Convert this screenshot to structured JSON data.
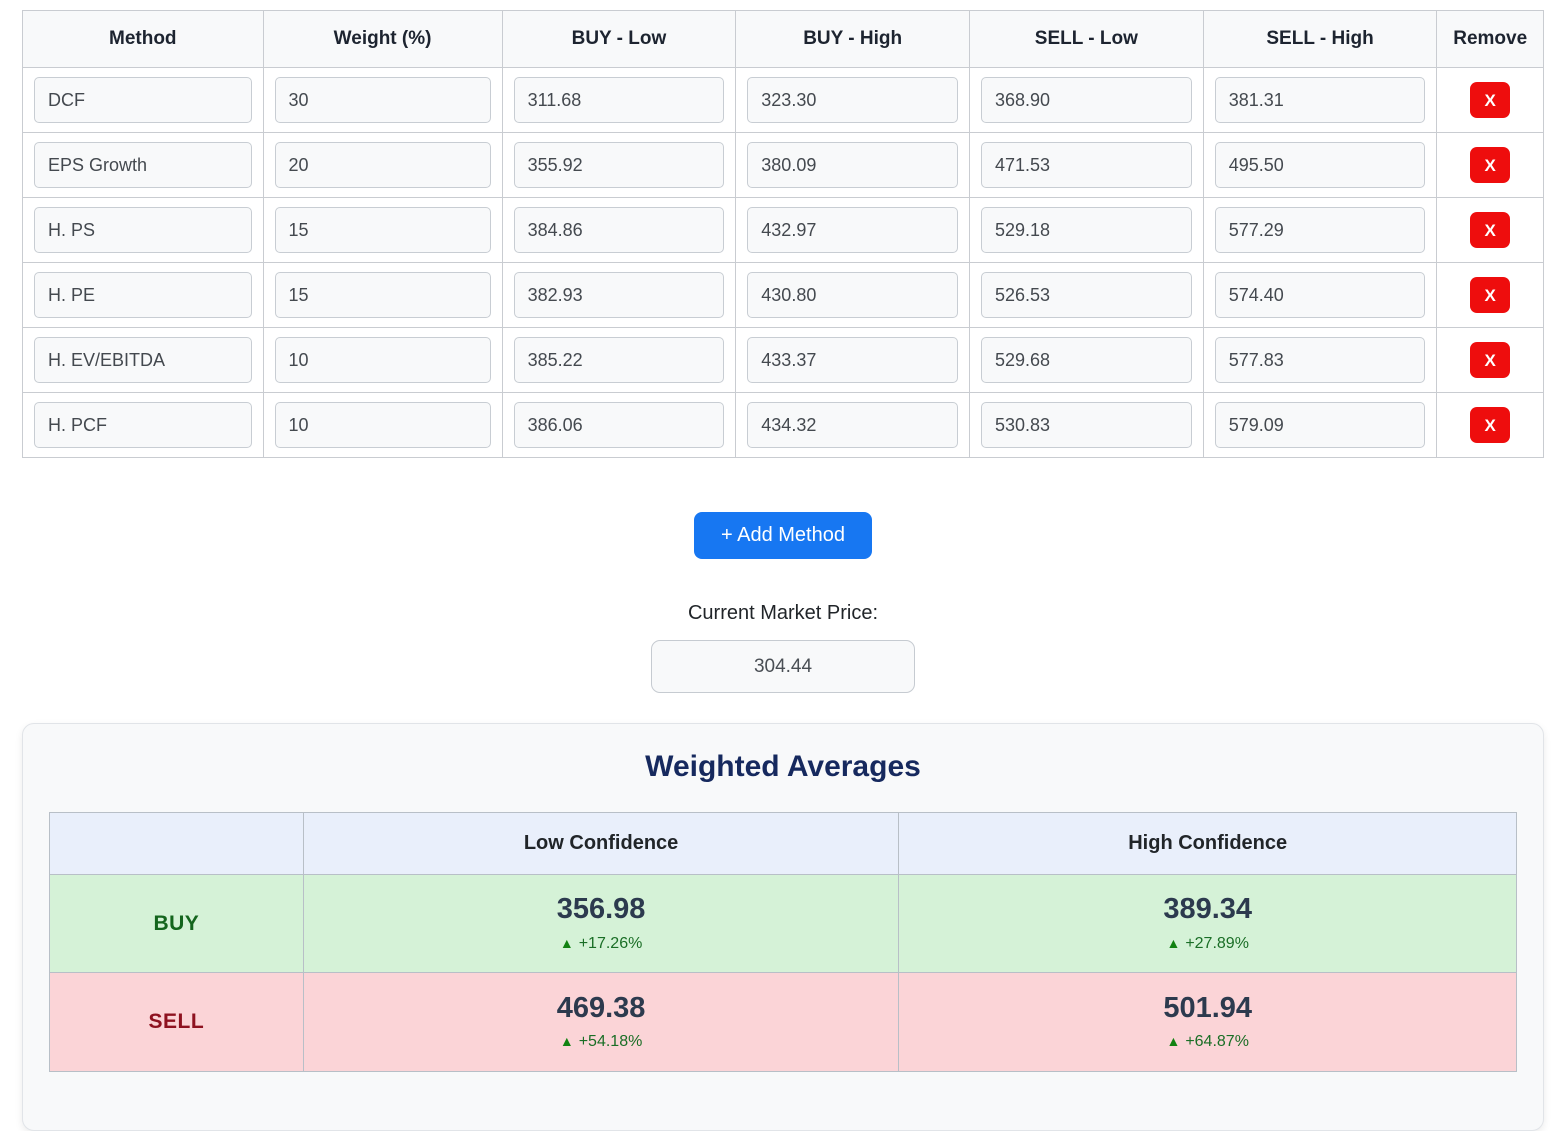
{
  "methods_table": {
    "headers": [
      "Method",
      "Weight (%)",
      "BUY - Low",
      "BUY - High",
      "SELL - Low",
      "SELL - High",
      "Remove"
    ],
    "remove_label": "X",
    "rows": [
      {
        "method": "DCF",
        "weight": "30",
        "buy_low": "311.68",
        "buy_high": "323.30",
        "sell_low": "368.90",
        "sell_high": "381.31"
      },
      {
        "method": "EPS Growth",
        "weight": "20",
        "buy_low": "355.92",
        "buy_high": "380.09",
        "sell_low": "471.53",
        "sell_high": "495.50"
      },
      {
        "method": "H. PS",
        "weight": "15",
        "buy_low": "384.86",
        "buy_high": "432.97",
        "sell_low": "529.18",
        "sell_high": "577.29"
      },
      {
        "method": "H. PE",
        "weight": "15",
        "buy_low": "382.93",
        "buy_high": "430.80",
        "sell_low": "526.53",
        "sell_high": "574.40"
      },
      {
        "method": "H. EV/EBITDA",
        "weight": "10",
        "buy_low": "385.22",
        "buy_high": "433.37",
        "sell_low": "529.68",
        "sell_high": "577.83"
      },
      {
        "method": "H. PCF",
        "weight": "10",
        "buy_low": "386.06",
        "buy_high": "434.32",
        "sell_low": "530.83",
        "sell_high": "579.09"
      }
    ]
  },
  "add_method_button_label": "+ Add Method",
  "market_price": {
    "label": "Current Market Price:",
    "value": "304.44"
  },
  "weighted_averages": {
    "title": "Weighted Averages",
    "up_icon": "▲",
    "col_headers": [
      "Low Confidence",
      "High Confidence"
    ],
    "rows": [
      {
        "label": "BUY",
        "low_value": "356.98",
        "low_delta": "+17.26%",
        "high_value": "389.34",
        "high_delta": "+27.89%"
      },
      {
        "label": "SELL",
        "low_value": "469.38",
        "low_delta": "+54.18%",
        "high_value": "501.94",
        "high_delta": "+64.87%"
      }
    ]
  },
  "colors": {
    "accent_blue": "#1777f2",
    "remove_red": "#ee0d0d",
    "buy_green_bg": "#d5f2d7",
    "sell_red_bg": "#fbd4d7",
    "buy_text": "#14651d",
    "sell_text": "#8e1220",
    "delta_green": "#1a6e26",
    "title_navy": "#16295e",
    "header_blue_bg": "#e9effb"
  }
}
